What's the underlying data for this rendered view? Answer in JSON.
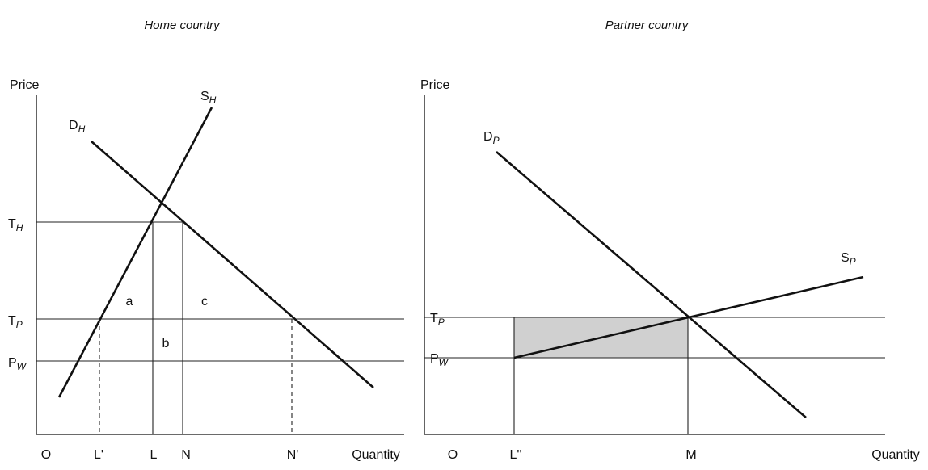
{
  "panels": [
    {
      "title": "Home country",
      "y_axis_label": "Price",
      "x_axis_label": "Quantity",
      "origin": "O",
      "curves": [
        {
          "main": "D",
          "sub": "H"
        },
        {
          "main": "S",
          "sub": "H"
        }
      ],
      "price_levels": [
        {
          "main": "T",
          "sub": "H"
        },
        {
          "main": "T",
          "sub": "P"
        },
        {
          "main": "P",
          "sub": "W"
        }
      ],
      "quantities": [
        "L'",
        "L",
        "N",
        "N'"
      ],
      "areas": [
        "a",
        "b",
        "c"
      ]
    },
    {
      "title": "Partner country",
      "y_axis_label": "Price",
      "x_axis_label": "Quantity",
      "origin": "O",
      "curves": [
        {
          "main": "D",
          "sub": "P"
        },
        {
          "main": "S",
          "sub": "P"
        }
      ],
      "price_levels": [
        {
          "main": "T",
          "sub": "P"
        },
        {
          "main": "P",
          "sub": "W"
        }
      ],
      "quantities": [
        "L''",
        "M"
      ]
    }
  ]
}
